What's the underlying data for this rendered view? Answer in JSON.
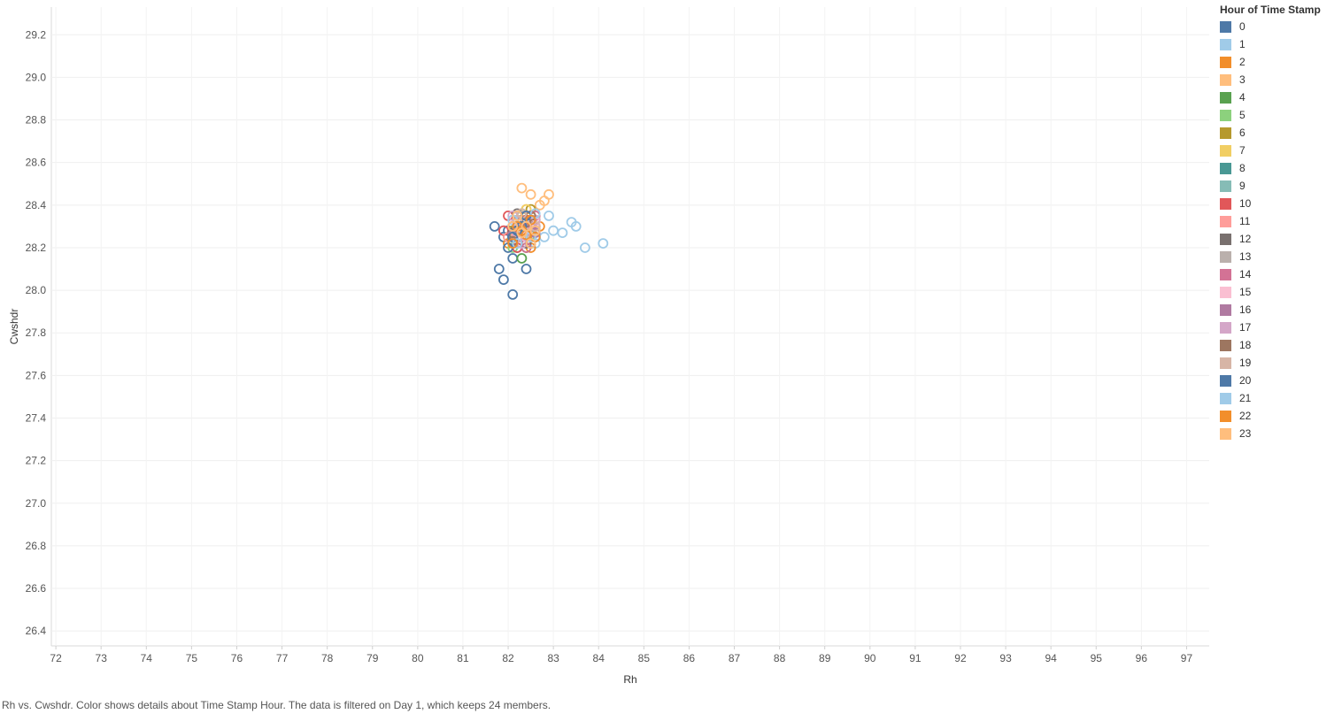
{
  "chart_data": {
    "type": "scatter",
    "title": "",
    "xlabel": "Rh",
    "ylabel": "Cwshdr",
    "xlim": [
      71.9,
      97.5
    ],
    "ylim": [
      26.33,
      29.33
    ],
    "x_ticks": [
      "72",
      "73",
      "74",
      "75",
      "76",
      "77",
      "78",
      "79",
      "80",
      "81",
      "82",
      "83",
      "84",
      "85",
      "86",
      "87",
      "88",
      "89",
      "90",
      "91",
      "92",
      "93",
      "94",
      "95",
      "96",
      "97"
    ],
    "y_ticks": [
      "26.4",
      "26.6",
      "26.8",
      "27.0",
      "27.2",
      "27.4",
      "27.6",
      "27.8",
      "28.0",
      "28.2",
      "28.4",
      "28.6",
      "28.8",
      "29.0",
      "29.2"
    ],
    "grid": true,
    "marker": "hollow-circle",
    "legend_title": "Hour of Time Stamp",
    "legend_position": "right",
    "series": [
      {
        "name": "0",
        "color": "#4e79a7",
        "points": [
          [
            82.0,
            28.28
          ],
          [
            82.2,
            28.2
          ],
          [
            81.8,
            28.1
          ],
          [
            81.9,
            28.25
          ],
          [
            82.1,
            28.15
          ],
          [
            81.7,
            28.3
          ],
          [
            82.3,
            28.25
          ],
          [
            82.1,
            27.98
          ],
          [
            81.9,
            28.05
          ],
          [
            82.4,
            28.1
          ]
        ]
      },
      {
        "name": "1",
        "color": "#a0cbe8",
        "points": [
          [
            82.5,
            28.3
          ],
          [
            82.8,
            28.25
          ],
          [
            83.0,
            28.28
          ],
          [
            83.4,
            28.32
          ],
          [
            83.7,
            28.2
          ],
          [
            84.1,
            28.22
          ],
          [
            82.9,
            28.35
          ],
          [
            82.6,
            28.22
          ],
          [
            83.2,
            28.27
          ],
          [
            83.5,
            28.3
          ]
        ]
      },
      {
        "name": "2",
        "color": "#f28e2b",
        "points": [
          [
            82.3,
            28.3
          ],
          [
            82.1,
            28.25
          ],
          [
            82.5,
            28.2
          ],
          [
            82.4,
            28.33
          ],
          [
            82.0,
            28.22
          ],
          [
            82.6,
            28.28
          ],
          [
            82.2,
            28.35
          ],
          [
            82.7,
            28.3
          ]
        ]
      },
      {
        "name": "3",
        "color": "#ffbe7d",
        "points": [
          [
            82.5,
            28.45
          ],
          [
            82.7,
            28.4
          ],
          [
            82.3,
            28.48
          ],
          [
            82.6,
            28.35
          ],
          [
            82.8,
            28.42
          ],
          [
            82.4,
            28.38
          ],
          [
            82.9,
            28.45
          ],
          [
            82.2,
            28.3
          ]
        ]
      },
      {
        "name": "4",
        "color": "#59a14f",
        "points": [
          [
            82.2,
            28.3
          ],
          [
            82.4,
            28.2
          ],
          [
            82.0,
            28.25
          ],
          [
            82.6,
            28.28
          ],
          [
            82.3,
            28.35
          ],
          [
            82.1,
            28.3
          ],
          [
            82.5,
            28.22
          ],
          [
            82.3,
            28.15
          ]
        ]
      },
      {
        "name": "5",
        "color": "#8cd17d",
        "points": [
          [
            82.4,
            28.3
          ],
          [
            82.2,
            28.25
          ],
          [
            82.6,
            28.33
          ],
          [
            82.1,
            28.2
          ],
          [
            82.5,
            28.26
          ],
          [
            82.3,
            28.3
          ]
        ]
      },
      {
        "name": "6",
        "color": "#b6992d",
        "points": [
          [
            82.2,
            28.35
          ],
          [
            82.4,
            28.3
          ],
          [
            82.1,
            28.28
          ],
          [
            82.5,
            28.38
          ],
          [
            82.3,
            28.25
          ],
          [
            82.6,
            28.33
          ]
        ]
      },
      {
        "name": "7",
        "color": "#f1ce63",
        "points": [
          [
            82.3,
            28.33
          ],
          [
            82.5,
            28.28
          ],
          [
            82.2,
            28.22
          ],
          [
            82.6,
            28.3
          ],
          [
            82.4,
            28.38
          ],
          [
            82.1,
            28.3
          ]
        ]
      },
      {
        "name": "8",
        "color": "#499894",
        "points": [
          [
            82.3,
            28.28
          ],
          [
            82.1,
            28.22
          ],
          [
            82.5,
            28.3
          ],
          [
            82.2,
            28.35
          ],
          [
            82.4,
            28.25
          ],
          [
            82.6,
            28.28
          ]
        ]
      },
      {
        "name": "9",
        "color": "#86bcb6",
        "points": [
          [
            82.2,
            28.3
          ],
          [
            82.4,
            28.33
          ],
          [
            82.1,
            28.25
          ],
          [
            82.5,
            28.22
          ],
          [
            82.3,
            28.36
          ],
          [
            82.6,
            28.3
          ]
        ]
      },
      {
        "name": "10",
        "color": "#e15759",
        "points": [
          [
            82.1,
            28.3
          ],
          [
            82.3,
            28.25
          ],
          [
            82.0,
            28.35
          ],
          [
            82.5,
            28.3
          ],
          [
            82.2,
            28.2
          ],
          [
            82.4,
            28.33
          ],
          [
            82.6,
            28.28
          ],
          [
            81.9,
            28.28
          ]
        ]
      },
      {
        "name": "11",
        "color": "#ff9d9a",
        "points": [
          [
            82.2,
            28.32
          ],
          [
            82.4,
            28.28
          ],
          [
            82.0,
            28.25
          ],
          [
            82.5,
            28.35
          ],
          [
            82.3,
            28.22
          ],
          [
            82.6,
            28.3
          ]
        ]
      },
      {
        "name": "12",
        "color": "#79706e",
        "points": [
          [
            82.3,
            28.3
          ],
          [
            82.1,
            28.27
          ],
          [
            82.5,
            28.33
          ],
          [
            82.2,
            28.36
          ],
          [
            82.4,
            28.22
          ],
          [
            82.6,
            28.28
          ]
        ]
      },
      {
        "name": "13",
        "color": "#bab0ac",
        "points": [
          [
            82.2,
            28.28
          ],
          [
            82.4,
            28.32
          ],
          [
            82.1,
            28.22
          ],
          [
            82.5,
            28.27
          ],
          [
            82.3,
            28.35
          ],
          [
            82.6,
            28.3
          ]
        ]
      },
      {
        "name": "14",
        "color": "#d37295",
        "points": [
          [
            82.3,
            28.25
          ],
          [
            82.1,
            28.3
          ],
          [
            82.5,
            28.28
          ],
          [
            82.2,
            28.33
          ],
          [
            82.4,
            28.2
          ],
          [
            82.6,
            28.35
          ]
        ]
      },
      {
        "name": "15",
        "color": "#fabfd2",
        "points": [
          [
            82.2,
            28.3
          ],
          [
            82.4,
            28.25
          ],
          [
            82.1,
            28.33
          ],
          [
            82.5,
            28.22
          ],
          [
            82.3,
            28.28
          ],
          [
            82.6,
            28.32
          ]
        ]
      },
      {
        "name": "16",
        "color": "#b07aa1",
        "points": [
          [
            82.3,
            28.32
          ],
          [
            82.1,
            28.26
          ],
          [
            82.5,
            28.3
          ],
          [
            82.2,
            28.22
          ],
          [
            82.4,
            28.35
          ],
          [
            82.6,
            28.27
          ]
        ]
      },
      {
        "name": "17",
        "color": "#d4a6c8",
        "points": [
          [
            82.2,
            28.27
          ],
          [
            82.4,
            28.3
          ],
          [
            82.1,
            28.35
          ],
          [
            82.5,
            28.25
          ],
          [
            82.3,
            28.22
          ],
          [
            82.6,
            28.33
          ]
        ]
      },
      {
        "name": "18",
        "color": "#9d7660",
        "points": [
          [
            82.3,
            28.3
          ],
          [
            82.1,
            28.23
          ],
          [
            82.5,
            28.35
          ],
          [
            82.2,
            28.28
          ],
          [
            82.4,
            28.32
          ],
          [
            82.6,
            28.25
          ]
        ]
      },
      {
        "name": "19",
        "color": "#d7b5a6",
        "points": [
          [
            82.2,
            28.33
          ],
          [
            82.4,
            28.27
          ],
          [
            82.1,
            28.3
          ],
          [
            82.5,
            28.22
          ],
          [
            82.3,
            28.36
          ],
          [
            82.6,
            28.3
          ]
        ]
      },
      {
        "name": "20",
        "color": "#4e79a7",
        "points": [
          [
            82.1,
            28.25
          ],
          [
            82.3,
            28.3
          ],
          [
            82.0,
            28.2
          ],
          [
            82.4,
            28.35
          ],
          [
            82.2,
            28.28
          ],
          [
            82.5,
            28.22
          ]
        ]
      },
      {
        "name": "21",
        "color": "#a0cbe8",
        "points": [
          [
            82.3,
            28.28
          ],
          [
            82.1,
            28.33
          ],
          [
            82.5,
            28.25
          ],
          [
            82.2,
            28.22
          ],
          [
            82.4,
            28.3
          ],
          [
            82.6,
            28.36
          ]
        ]
      },
      {
        "name": "22",
        "color": "#f28e2b",
        "points": [
          [
            82.2,
            28.3
          ],
          [
            82.4,
            28.26
          ],
          [
            82.1,
            28.22
          ],
          [
            82.5,
            28.33
          ],
          [
            82.3,
            28.28
          ],
          [
            82.6,
            28.25
          ]
        ]
      },
      {
        "name": "23",
        "color": "#ffbe7d",
        "points": [
          [
            82.3,
            28.27
          ],
          [
            82.1,
            28.3
          ],
          [
            82.5,
            28.22
          ],
          [
            82.2,
            28.35
          ],
          [
            82.4,
            28.3
          ],
          [
            82.6,
            28.28
          ]
        ]
      }
    ]
  },
  "caption": "Rh vs. Cwshdr.  Color shows details about Time Stamp Hour. The data is filtered on Day 1, which keeps 24 members."
}
